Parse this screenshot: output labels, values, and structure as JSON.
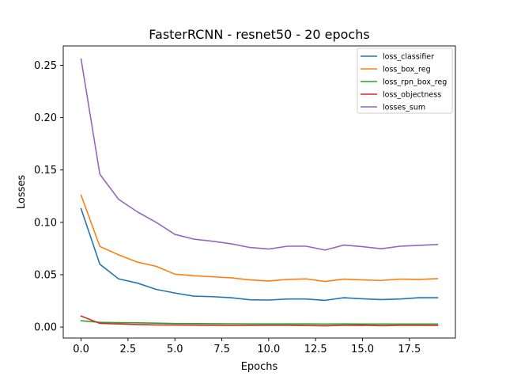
{
  "chart_data": {
    "type": "line",
    "title": "FasterRCNN - resnet50 - 20 epochs",
    "xlabel": "Epochs",
    "ylabel": "Losses",
    "xlim": [
      -0.95,
      19.95
    ],
    "ylim": [
      -0.0105,
      0.2685
    ],
    "xticks": [
      0,
      2.5,
      5,
      7.5,
      10,
      12.5,
      15,
      17.5
    ],
    "xtick_labels": [
      "0.0",
      "2.5",
      "5.0",
      "7.5",
      "10.0",
      "12.5",
      "15.0",
      "17.5"
    ],
    "yticks": [
      0,
      0.05,
      0.1,
      0.15,
      0.2,
      0.25
    ],
    "ytick_labels": [
      "0.00",
      "0.05",
      "0.10",
      "0.15",
      "0.20",
      "0.25"
    ],
    "grid": false,
    "legend_position": "top-right",
    "x": [
      0,
      1,
      2,
      3,
      4,
      5,
      6,
      7,
      8,
      9,
      10,
      11,
      12,
      13,
      14,
      15,
      16,
      17,
      18,
      19
    ],
    "series": [
      {
        "name": "loss_classifier",
        "color": "#1f77b4",
        "values": [
          0.113,
          0.06,
          0.046,
          0.042,
          0.036,
          0.0325,
          0.0295,
          0.029,
          0.028,
          0.026,
          0.0258,
          0.0268,
          0.0268,
          0.0255,
          0.028,
          0.027,
          0.0262,
          0.0268,
          0.028,
          0.028
        ]
      },
      {
        "name": "loss_box_reg",
        "color": "#ff7f0e",
        "values": [
          0.126,
          0.077,
          0.069,
          0.062,
          0.058,
          0.0505,
          0.049,
          0.048,
          0.047,
          0.045,
          0.044,
          0.0455,
          0.046,
          0.0435,
          0.0458,
          0.045,
          0.0445,
          0.0458,
          0.0455,
          0.0462
        ]
      },
      {
        "name": "loss_rpn_box_reg",
        "color": "#2ca02c",
        "values": [
          0.006,
          0.0045,
          0.0042,
          0.004,
          0.0037,
          0.0034,
          0.0033,
          0.0032,
          0.0031,
          0.003,
          0.003,
          0.003,
          0.003,
          0.0029,
          0.003,
          0.0029,
          0.0029,
          0.0029,
          0.0029,
          0.0029
        ]
      },
      {
        "name": "loss_objectness",
        "color": "#d62728",
        "values": [
          0.0105,
          0.0035,
          0.003,
          0.0024,
          0.002,
          0.0019,
          0.0018,
          0.0017,
          0.0015,
          0.0015,
          0.0016,
          0.0016,
          0.0014,
          0.0012,
          0.0016,
          0.0017,
          0.0013,
          0.0016,
          0.0016,
          0.0015
        ]
      },
      {
        "name": "losses_sum",
        "color": "#9467bd",
        "values": [
          0.256,
          0.146,
          0.122,
          0.11,
          0.1,
          0.0885,
          0.084,
          0.082,
          0.0795,
          0.076,
          0.0745,
          0.0772,
          0.0772,
          0.0735,
          0.0783,
          0.0768,
          0.0748,
          0.0772,
          0.078,
          0.0788
        ]
      }
    ]
  }
}
